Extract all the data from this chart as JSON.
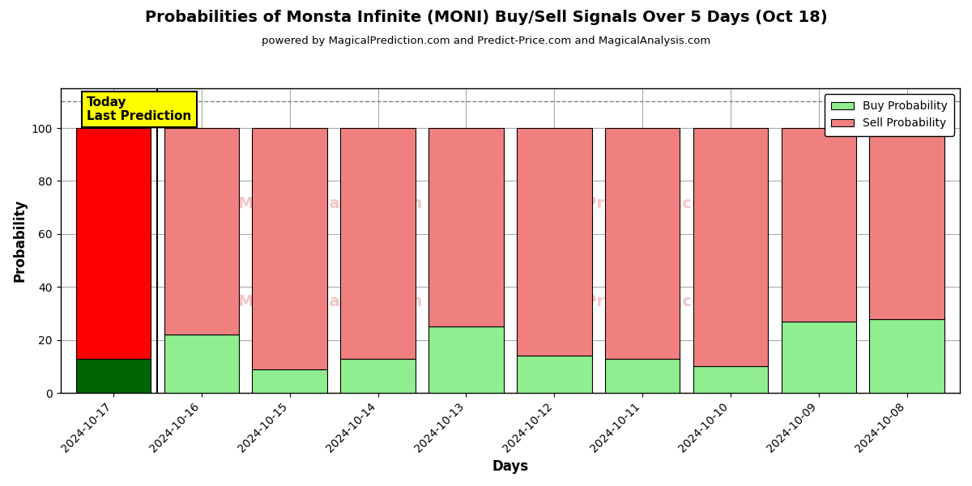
{
  "title": "Probabilities of Monsta Infinite (MONI) Buy/Sell Signals Over 5 Days (Oct 18)",
  "subtitle": "powered by MagicalPrediction.com and Predict-Price.com and MagicalAnalysis.com",
  "xlabel": "Days",
  "ylabel": "Probability",
  "dates": [
    "2024-10-17",
    "2024-10-16",
    "2024-10-15",
    "2024-10-14",
    "2024-10-13",
    "2024-10-12",
    "2024-10-11",
    "2024-10-10",
    "2024-10-09",
    "2024-10-08"
  ],
  "buy_dark": [
    13,
    0,
    0,
    0,
    0,
    0,
    0,
    0,
    0,
    0
  ],
  "buy_light": [
    0,
    22,
    9,
    13,
    25,
    14,
    13,
    10,
    27,
    28
  ],
  "sell_bright": [
    87,
    0,
    0,
    0,
    0,
    0,
    0,
    0,
    0,
    0
  ],
  "sell_light": [
    0,
    78,
    91,
    87,
    75,
    86,
    87,
    90,
    73,
    72
  ],
  "bar_width": 0.85,
  "ylim": [
    0,
    115
  ],
  "yticks": [
    0,
    20,
    40,
    60,
    80,
    100
  ],
  "color_buy_dark": "#006400",
  "color_buy_light": "#90EE90",
  "color_sell_bright": "#FF0000",
  "color_sell_light": "#F08080",
  "color_today_box_bg": "#FFFF00",
  "color_today_box_edge": "#000000",
  "today_label": "Today\nLast Prediction",
  "legend_buy_label": "Buy Probability",
  "legend_sell_label": "Sell Probability",
  "dashed_line_y": 110,
  "background_color": "#ffffff",
  "grid_color": "#aaaaaa"
}
